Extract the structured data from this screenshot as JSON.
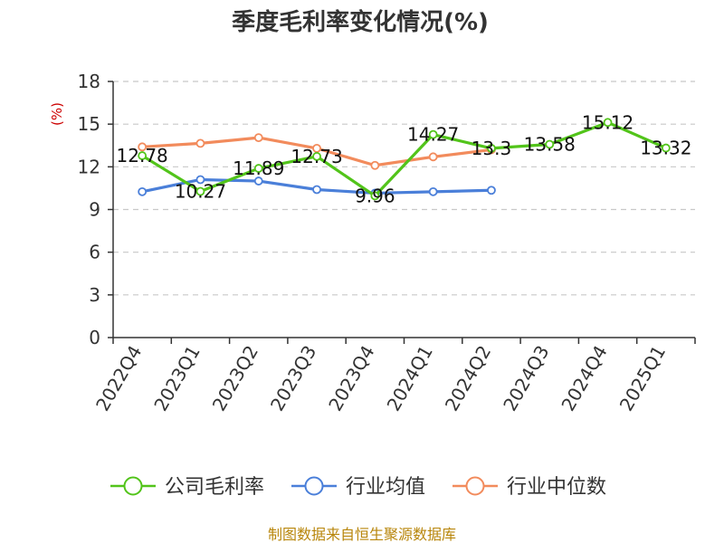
{
  "chart_data": {
    "type": "line",
    "title": "季度毛利率变化情况(%)",
    "ylabel": "(%)",
    "xlabel": "",
    "ylim": [
      0,
      18
    ],
    "yticks": [
      0,
      3,
      6,
      9,
      12,
      15,
      18
    ],
    "grid": true,
    "legend_position": "bottom",
    "categories": [
      "2022Q4",
      "2023Q1",
      "2023Q2",
      "2023Q3",
      "2023Q4",
      "2024Q1",
      "2024Q2",
      "2024Q3",
      "2024Q4",
      "2025Q1"
    ],
    "series": [
      {
        "name": "公司毛利率",
        "color": "#52c41a",
        "values": [
          12.78,
          10.27,
          11.89,
          12.73,
          9.96,
          14.27,
          13.3,
          13.58,
          15.12,
          13.32
        ],
        "labels": [
          "12.78",
          "10.27",
          "11.89",
          "12.73",
          "9.96",
          "14.27",
          "13.3",
          "13.58",
          "15.12",
          "13.32"
        ]
      },
      {
        "name": "行业均值",
        "color": "#4a7fd9",
        "values": [
          10.25,
          11.1,
          11.0,
          10.4,
          10.15,
          10.25,
          10.35,
          null,
          null,
          null
        ]
      },
      {
        "name": "行业中位数",
        "color": "#f28b5c",
        "values": [
          13.4,
          13.65,
          14.05,
          13.3,
          12.1,
          12.7,
          13.2,
          null,
          null,
          null
        ]
      }
    ],
    "source": "制图数据来自恒生聚源数据库"
  }
}
